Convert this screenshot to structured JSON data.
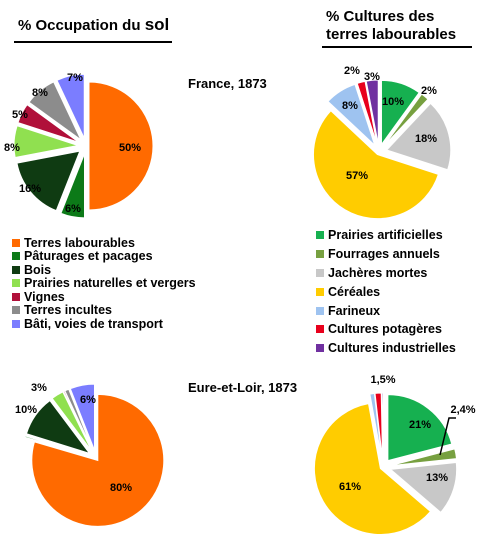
{
  "headings": {
    "left_prefix": "% Occupation du",
    "left_suffix": "sol",
    "right_line1": "% Cultures des",
    "right_line2": "terres labourables"
  },
  "colors": {
    "terres_labourables": "#ff6a00",
    "paturages": "#0c7a18",
    "bois": "#0f3b12",
    "prairies_naturelles": "#90e050",
    "vignes": "#b0103a",
    "terres_incultes": "#8c8c8c",
    "bati": "#7b7dff",
    "prairies_artificielles": "#16b050",
    "fourrages": "#77a040",
    "jacheres": "#c8c8c8",
    "cereales": "#ffcc00",
    "farineux": "#9ec3f0",
    "cultures_potageres": "#e8001c",
    "cultures_industrielles": "#7030a0"
  },
  "chart_data": [
    {
      "type": "pie",
      "title": "France, 1873",
      "slices": [
        {
          "label": "Terres labourables",
          "value": 50,
          "display": "50%"
        },
        {
          "label": "Pâturages et pacages",
          "value": 6,
          "display": "6%"
        },
        {
          "label": "Bois",
          "value": 16,
          "display": "16%"
        },
        {
          "label": "Prairies naturelles et vergers",
          "value": 8,
          "display": "8%"
        },
        {
          "label": "Vignes",
          "value": 5,
          "display": "5%"
        },
        {
          "label": "Terres incultes",
          "value": 8,
          "display": "8%"
        },
        {
          "label": "Bâti, voies de transport",
          "value": 7,
          "display": "7%"
        }
      ]
    },
    {
      "type": "pie",
      "title": "",
      "slices": [
        {
          "label": "Prairies artificielles",
          "value": 10,
          "display": "10%"
        },
        {
          "label": "Fourrages annuels",
          "value": 2,
          "display": "2%"
        },
        {
          "label": "Jachères mortes",
          "value": 18,
          "display": "18%"
        },
        {
          "label": "Céréales",
          "value": 57,
          "display": "57%"
        },
        {
          "label": "Farineux",
          "value": 8,
          "display": "8%"
        },
        {
          "label": "Cultures potagères",
          "value": 2,
          "display": "2%"
        },
        {
          "label": "Cultures industrielles",
          "value": 3,
          "display": "3%"
        }
      ]
    },
    {
      "type": "pie",
      "title": "Eure-et-Loir, 1873",
      "slices": [
        {
          "label": "Terres labourables",
          "value": 80,
          "display": "80%"
        },
        {
          "label": "Pâturages et pacages",
          "value": 0.3,
          "display": ""
        },
        {
          "label": "Bois",
          "value": 10,
          "display": "10%"
        },
        {
          "label": "Prairies naturelles et vergers",
          "value": 3,
          "display": "3%"
        },
        {
          "label": "Vignes",
          "value": 0.3,
          "display": ""
        },
        {
          "label": "Terres incultes",
          "value": 1,
          "display": "1%"
        },
        {
          "label": "Bâti, voies de transport",
          "value": 6,
          "display": "6%"
        }
      ]
    },
    {
      "type": "pie",
      "title": "",
      "slices": [
        {
          "label": "Prairies artificielles",
          "value": 21,
          "display": "21%"
        },
        {
          "label": "Fourrages annuels",
          "value": 2.4,
          "display": "2,4%"
        },
        {
          "label": "Jachères mortes",
          "value": 13,
          "display": "13%"
        },
        {
          "label": "Céréales",
          "value": 61,
          "display": "61%"
        },
        {
          "label": "Farineux",
          "value": 1.1,
          "display": ""
        },
        {
          "label": "Cultures potagères",
          "value": 1.5,
          "display": "1,5%"
        },
        {
          "label": "Cultures industrielles",
          "value": 0.3,
          "display": ""
        }
      ]
    }
  ],
  "legend_left": [
    {
      "label": "Terres labourables",
      "color": "#ff6a00"
    },
    {
      "label": "Pâturages et pacages",
      "color": "#0c7a18"
    },
    {
      "label": "Bois",
      "color": "#0f3b12"
    },
    {
      "label": "Prairies naturelles et vergers",
      "color": "#90e050"
    },
    {
      "label": "Vignes",
      "color": "#b0103a"
    },
    {
      "label": "Terres incultes",
      "color": "#8c8c8c"
    },
    {
      "label": "Bâti, voies de transport",
      "color": "#7b7dff"
    }
  ],
  "legend_right": [
    {
      "label": "Prairies artificielles",
      "color": "#16b050"
    },
    {
      "label": "Fourrages annuels",
      "color": "#77a040"
    },
    {
      "label": "Jachères mortes",
      "color": "#c8c8c8"
    },
    {
      "label": "Céréales",
      "color": "#ffcc00"
    },
    {
      "label": "Farineux",
      "color": "#9ec3f0"
    },
    {
      "label": "Cultures potagères",
      "color": "#e8001c"
    },
    {
      "label": "Cultures industrielles",
      "color": "#7030a0"
    }
  ]
}
